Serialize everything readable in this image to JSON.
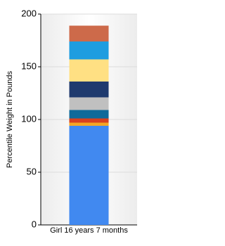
{
  "chart_data": {
    "type": "stacked-bar",
    "y_label": "Percentile Weight in Pounds",
    "categories": [
      "Girl 16 years 7 months"
    ],
    "series": [
      {
        "color": "#4189f0",
        "values": [
          94
        ]
      },
      {
        "color": "#f5a623",
        "values": [
          3
        ]
      },
      {
        "color": "#d9411e",
        "values": [
          4
        ]
      },
      {
        "color": "#106a9a",
        "values": [
          8
        ]
      },
      {
        "color": "#c0c0c0",
        "values": [
          12
        ]
      },
      {
        "color": "#1f3a6e",
        "values": [
          15
        ]
      },
      {
        "color": "#ffe083",
        "values": [
          21
        ]
      },
      {
        "color": "#1e9de0",
        "values": [
          17
        ]
      },
      {
        "color": "#cd6a4a",
        "values": [
          15
        ]
      }
    ],
    "ylim": [
      0,
      200
    ],
    "yticks": [
      0,
      50,
      100,
      150,
      200
    ],
    "grid": true
  }
}
